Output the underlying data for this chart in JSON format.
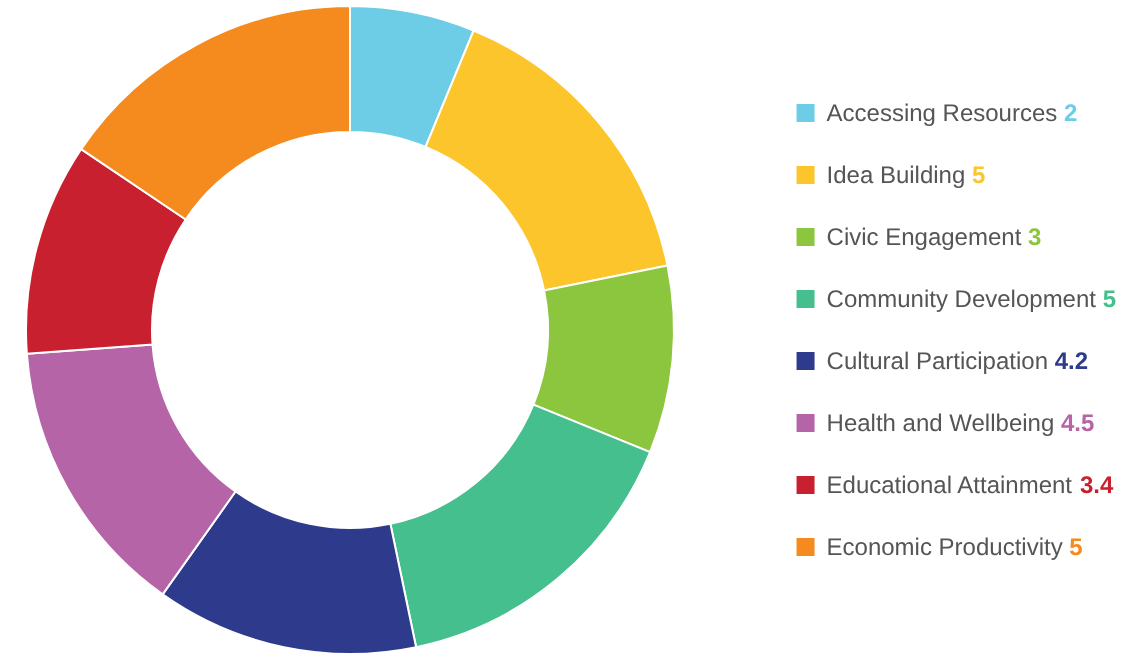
{
  "chart_data": {
    "type": "donut",
    "categories": [
      "Accessing Resources",
      "Idea Building",
      "Civic Engagement",
      "Community Development",
      "Cultural Participation",
      "Health and Wellbeing",
      "Educational Attainment",
      "Economic Productivity"
    ],
    "values": [
      2,
      5,
      3,
      5,
      4.2,
      4.5,
      3.4,
      5
    ],
    "colors": [
      "#6dcde6",
      "#fdc52c",
      "#8cc63f",
      "#45bf8e",
      "#2e3a8c",
      "#b565a7",
      "#c8202e",
      "#f58b1f"
    ],
    "data_labels": true,
    "legend": "right"
  }
}
